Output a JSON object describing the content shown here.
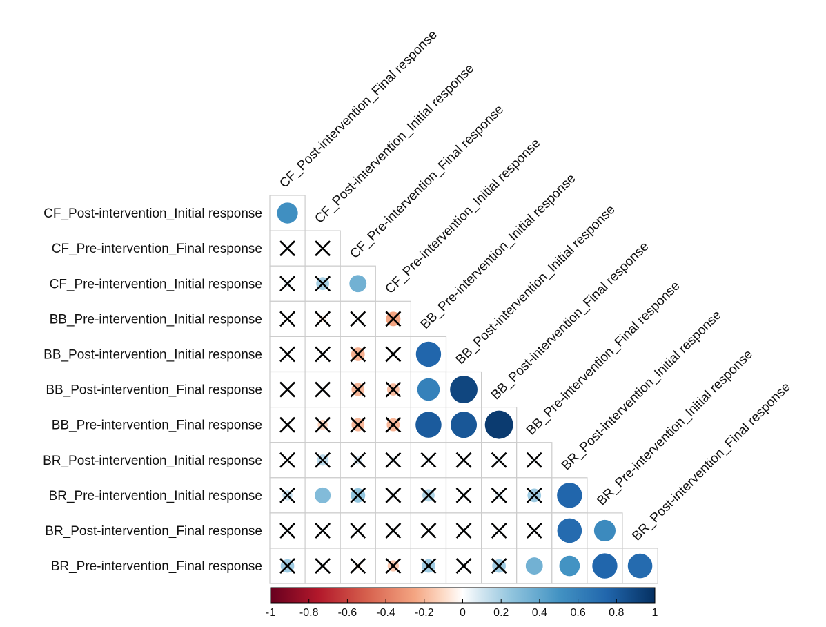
{
  "chart_data": {
    "type": "heatmap",
    "subtype": "correlation-lower-triangle-circles",
    "title": "",
    "xlabel": "",
    "ylabel": "",
    "row_labels": [
      "CF_Post-intervention_Initial response",
      "CF_Pre-intervention_Final response",
      "CF_Pre-intervention_Initial response",
      "BB_Pre-intervention_Initial response",
      "BB_Post-intervention_Initial response",
      "BB_Post-intervention_Final response",
      "BB_Pre-intervention_Final response",
      "BR_Post-intervention_Initial response",
      "BR_Pre-intervention_Initial response",
      "BR_Post-intervention_Final response",
      "BR_Pre-intervention_Final response"
    ],
    "column_labels": [
      "CF_Post-intervention_Final response",
      "CF_Post-intervention_Initial response",
      "CF_Pre-intervention_Final response",
      "CF_Pre-intervention_Initial response",
      "BB_Pre-intervention_Initial response",
      "BB_Post-intervention_Initial response",
      "BB_Post-intervention_Final response",
      "BB_Pre-intervention_Final response",
      "BR_Post-intervention_Initial response",
      "BR_Pre-intervention_Initial response",
      "BR_Post-intervention_Final response"
    ],
    "values": [
      [
        0.52
      ],
      [
        0.03,
        0.01
      ],
      [
        0.05,
        0.2,
        0.35
      ],
      [
        0.02,
        -0.05,
        0.03,
        -0.25
      ],
      [
        0.02,
        0.03,
        -0.22,
        0.04,
        0.75
      ],
      [
        0.03,
        0.03,
        -0.2,
        -0.18,
        0.6,
        0.9
      ],
      [
        0.03,
        -0.12,
        -0.2,
        -0.2,
        0.8,
        0.82,
        0.95
      ],
      [
        0.02,
        0.15,
        0.08,
        0.05,
        0.05,
        0.03,
        0.05,
        0.03
      ],
      [
        0.12,
        0.3,
        0.25,
        0.05,
        0.18,
        0.04,
        0.07,
        0.22,
        0.75
      ],
      [
        0.03,
        0.03,
        0.03,
        0.04,
        0.03,
        0.03,
        0.03,
        0.03,
        0.72,
        0.55
      ],
      [
        0.22,
        0.03,
        -0.05,
        -0.15,
        0.22,
        0.04,
        0.22,
        0.35,
        0.5,
        0.75,
        0.72
      ]
    ],
    "not_significant": [
      [
        false
      ],
      [
        true,
        true
      ],
      [
        true,
        true,
        false
      ],
      [
        true,
        true,
        true,
        true
      ],
      [
        true,
        true,
        true,
        true,
        false
      ],
      [
        true,
        true,
        true,
        true,
        false,
        false
      ],
      [
        true,
        true,
        true,
        true,
        false,
        false,
        false
      ],
      [
        true,
        true,
        true,
        true,
        true,
        true,
        true,
        true
      ],
      [
        true,
        false,
        true,
        true,
        true,
        true,
        true,
        true,
        false
      ],
      [
        true,
        true,
        true,
        true,
        true,
        true,
        true,
        true,
        false,
        false
      ],
      [
        true,
        true,
        true,
        true,
        true,
        true,
        true,
        false,
        false,
        false,
        false
      ]
    ],
    "colorbar": {
      "min": -1,
      "max": 1,
      "ticks": [
        "-1",
        "-0.8",
        "-0.6",
        "-0.4",
        "-0.2",
        "0",
        "0.2",
        "0.4",
        "0.6",
        "0.8",
        "1"
      ],
      "position": "bottom"
    },
    "colors": {
      "negative_end": "#67001f",
      "neutral": "#ffffff",
      "positive_end": "#053061",
      "grid": "#cccccc",
      "cross": "#000000"
    }
  }
}
